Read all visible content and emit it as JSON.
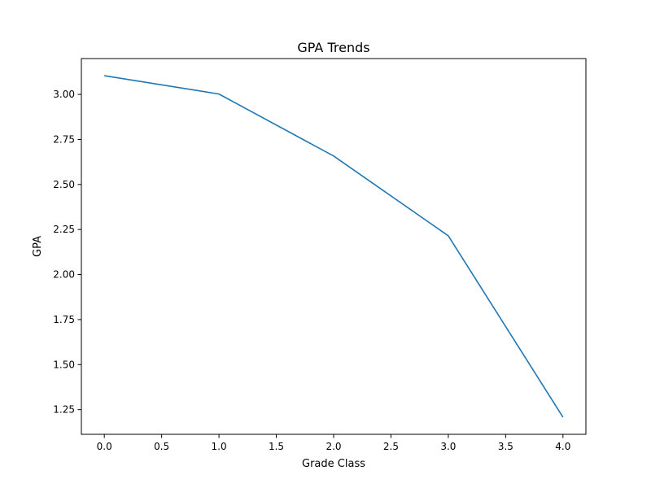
{
  "chart_data": {
    "type": "line",
    "title": "GPA Trends",
    "xlabel": "Grade Class",
    "ylabel": "GPA",
    "x": [
      0,
      1,
      2,
      3,
      4
    ],
    "series": [
      {
        "values": [
          3.104,
          3.002,
          2.658,
          2.215,
          1.208
        ],
        "color": "#1f77b4"
      }
    ],
    "xlim": [
      -0.2,
      4.2
    ],
    "ylim": [
      1.113,
      3.199
    ],
    "xticks": [
      0.0,
      0.5,
      1.0,
      1.5,
      2.0,
      2.5,
      3.0,
      3.5,
      4.0
    ],
    "xtick_labels": [
      "0.0",
      "0.5",
      "1.0",
      "1.5",
      "2.0",
      "2.5",
      "3.0",
      "3.5",
      "4.0"
    ],
    "yticks": [
      1.25,
      1.5,
      1.75,
      2.0,
      2.25,
      2.5,
      2.75,
      3.0
    ],
    "ytick_labels": [
      "1.25",
      "1.50",
      "1.75",
      "2.00",
      "2.25",
      "2.50",
      "2.75",
      "3.00"
    ],
    "grid": false,
    "legend": "none"
  }
}
